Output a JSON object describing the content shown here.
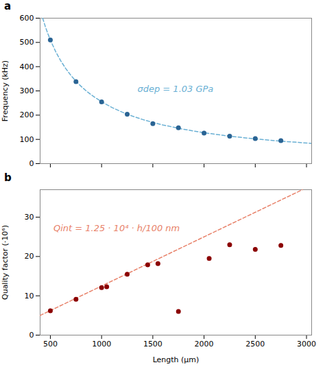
{
  "chart_data": [
    {
      "type": "scatter",
      "title": "a",
      "ylabel": "Frequency (kHz)",
      "xlim": [
        400,
        3050
      ],
      "ylim": [
        0,
        600
      ],
      "xticks": [
        500,
        1000,
        1500,
        2000,
        2500,
        3000
      ],
      "yticks": [
        0,
        100,
        200,
        300,
        400,
        500,
        600
      ],
      "grid": false,
      "tick_labels": "y",
      "series": [
        {
          "type": "line",
          "line_style": "dashed",
          "color": "#6ab0d4",
          "x": [
            425,
            450,
            475,
            500,
            550,
            600,
            650,
            700,
            750,
            800,
            850,
            900,
            1000,
            1100,
            1200,
            1300,
            1400,
            1500,
            1600,
            1800,
            2000,
            2200,
            2400,
            2600,
            2800,
            3050
          ],
          "values": [
            600,
            566.67,
            536.84,
            510,
            463.64,
            425,
            392.31,
            364.29,
            340,
            318.75,
            300,
            283.33,
            255,
            231.82,
            212.5,
            196.15,
            182.14,
            170,
            159.38,
            141.67,
            127.5,
            115.91,
            106.25,
            98.08,
            91.07,
            83.61
          ]
        },
        {
          "type": "scatter",
          "color": "#2a6494",
          "x": [
            500,
            750,
            1000,
            1250,
            1500,
            1750,
            2000,
            2250,
            2500,
            2750
          ],
          "values": [
            510,
            338,
            255,
            204,
            165,
            148,
            126,
            113,
            103,
            95
          ]
        }
      ],
      "annotations": [
        {
          "text": "σdep = 1.03 GPa",
          "x": 1350,
          "y": 295,
          "color": "#6ab0d4"
        }
      ]
    },
    {
      "type": "scatter",
      "title": "b",
      "xlabel": "Length (μm)",
      "ylabel": "Quality factor (·10⁶)",
      "xlim": [
        400,
        3050
      ],
      "ylim": [
        0,
        37
      ],
      "xticks": [
        500,
        1000,
        1500,
        2000,
        2500,
        3000
      ],
      "yticks": [
        0,
        10,
        20,
        30
      ],
      "grid": false,
      "series": [
        {
          "type": "line",
          "line_style": "dashed",
          "color": "#e8826a",
          "x": [
            400,
            2960
          ],
          "values": [
            5,
            37
          ]
        },
        {
          "type": "scatter",
          "color": "#8b0000",
          "x": [
            500,
            750,
            1000,
            1050,
            1250,
            1450,
            1550,
            1750,
            2050,
            2250,
            2500,
            2750
          ],
          "values": [
            6.2,
            9.1,
            12.1,
            12.3,
            15.5,
            17.9,
            18.2,
            6.0,
            19.5,
            23.0,
            21.8,
            22.8
          ]
        }
      ],
      "annotations": [
        {
          "text": "Qint = 1.25 · 10⁴ · h/100 nm",
          "x": 530,
          "y": 26.5,
          "color": "#e8826a"
        }
      ]
    }
  ]
}
